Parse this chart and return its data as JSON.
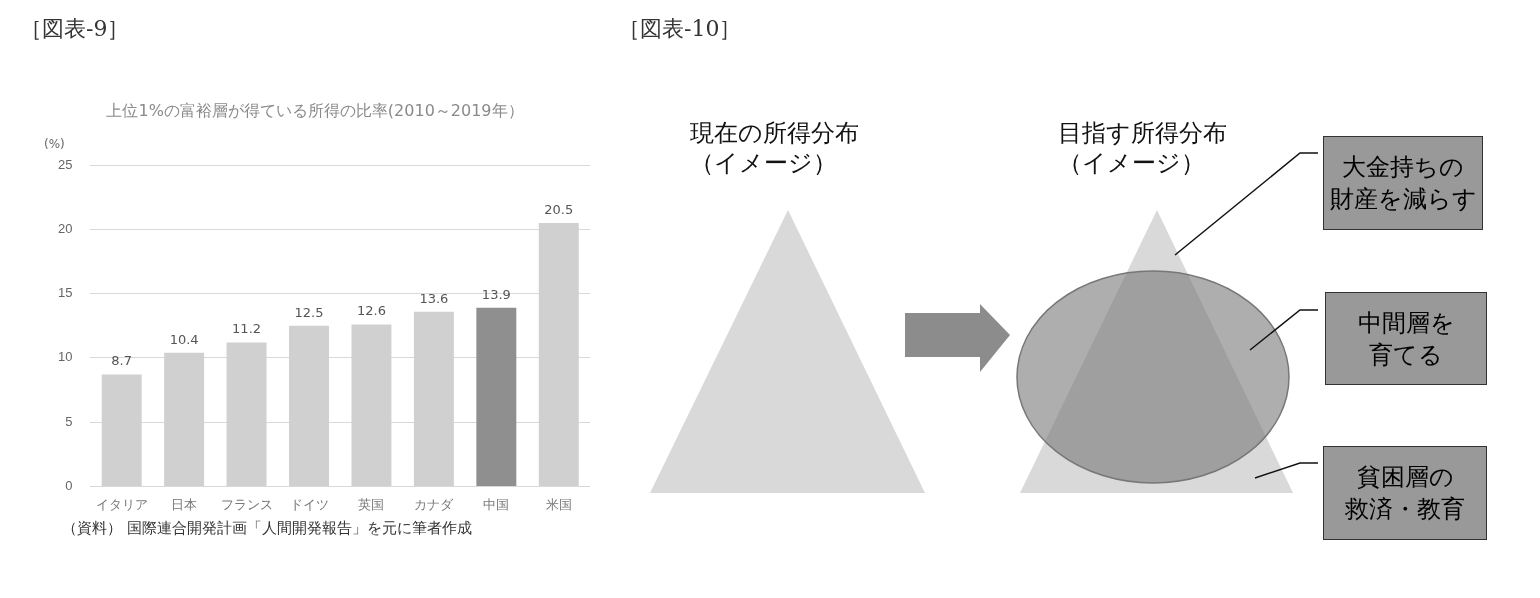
{
  "chart_data": [
    {
      "type": "bar",
      "title": "上位1%の富裕層が得ている所得の比率(2010～2019年）",
      "ylabel": "(%)",
      "categories": [
        "イタリア",
        "日本",
        "フランス",
        "ドイツ",
        "英国",
        "カナダ",
        "中国",
        "米国"
      ],
      "values": [
        8.7,
        10.4,
        11.2,
        12.5,
        12.6,
        13.6,
        13.9,
        20.5
      ],
      "colors": [
        "#d0d0d0",
        "#d0d0d0",
        "#d0d0d0",
        "#d0d0d0",
        "#d0d0d0",
        "#d0d0d0",
        "#8f8f8f",
        "#d0d0d0"
      ],
      "ylim": [
        0,
        25
      ],
      "yticks": [
        0,
        5,
        10,
        15,
        20,
        25
      ],
      "grid": "y",
      "data_labels": true,
      "annotations": [
        "［図表-9］",
        "（資料） 国際連合開発計画「人間開発報告」を元に筆者作成"
      ]
    },
    {
      "type": "other",
      "title": "［図表-10］",
      "annotations": [
        "現在の所得分布（イメージ）",
        "目指す所得分布（イメージ）",
        "大金持ちの財産を減らす",
        "中間層を育てる",
        "貧困層の救済・教育"
      ]
    }
  ]
}
